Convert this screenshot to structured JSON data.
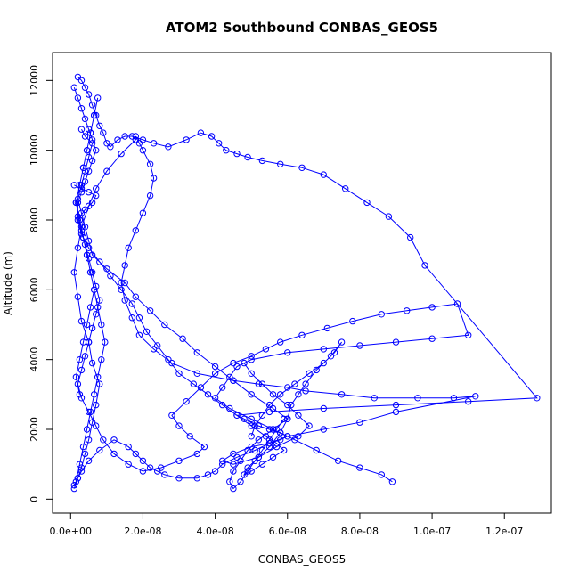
{
  "chart_data": {
    "type": "scatter",
    "title": "ATOM2 Southbound CONBAS_GEOS5",
    "xlabel": "CONBAS_GEOS5",
    "ylabel": "Altitude (m)",
    "xlim": [
      -5e-09,
      1.33e-07
    ],
    "ylim": [
      -400,
      12800
    ],
    "x_ticks": [
      0,
      2e-08,
      4e-08,
      6e-08,
      8e-08,
      1e-07,
      1.2e-07
    ],
    "x_tick_labels": [
      "0.0e+00",
      "2.0e-08",
      "4.0e-08",
      "6.0e-08",
      "8.0e-08",
      "1.0e-07",
      "1.2e-07"
    ],
    "y_ticks": [
      0,
      2000,
      4000,
      6000,
      8000,
      10000,
      12000
    ],
    "y_tick_labels": [
      "0",
      "2000",
      "4000",
      "6000",
      "8000",
      "10000",
      "12000"
    ],
    "grid": false,
    "marker": "open-circle",
    "connected": true,
    "color": "#0000ff",
    "series": [
      {
        "x": [
          1e-09,
          2e-09,
          3e-09,
          4e-09,
          5e-09,
          6e-09,
          7e-09,
          8e-09,
          6e-09,
          5e-09,
          3e-09,
          2e-09,
          1e-09,
          2e-09,
          3e-09,
          5e-09,
          7e-09,
          1e-08,
          1.4e-08,
          1.8e-08,
          1.8e-08,
          1.9e-08,
          2e-08,
          2.2e-08,
          2.3e-08,
          2.2e-08,
          2e-08,
          1.8e-08,
          1.6e-08,
          1.5e-08,
          1.4e-08,
          1.5e-08,
          1.7e-08,
          1.9e-08,
          2.3e-08,
          2.8e-08,
          3.5e-08,
          4.5e-08,
          5.2e-08,
          6e-08,
          6.5e-08,
          7.5e-08,
          8.4e-08,
          9.6e-08,
          1.06e-07,
          1.12e-07,
          9e-08,
          8e-08,
          7e-08,
          6e-08,
          5.5e-08,
          5.1e-08,
          4.6e-08,
          4.2e-08,
          4e-08,
          3.8e-08,
          3.5e-08,
          3e-08,
          2.6e-08,
          2.4e-08,
          2.2e-08,
          2e-08,
          1.8e-08,
          1.6e-08,
          1.2e-08,
          8e-09,
          5e-09,
          3e-09,
          2e-09,
          1e-09
        ],
        "y": [
          300,
          600,
          900,
          1300,
          1700,
          2200,
          2700,
          3300,
          3900,
          4500,
          5100,
          5800,
          6500,
          7200,
          7800,
          8400,
          8900,
          9400,
          9900,
          10300,
          10400,
          10200,
          10000,
          9600,
          9200,
          8700,
          8200,
          7700,
          7200,
          6700,
          6200,
          5700,
          5200,
          4700,
          4300,
          3900,
          3600,
          3400,
          3300,
          3200,
          3100,
          3000,
          2900,
          2900,
          2900,
          2950,
          2500,
          2200,
          2000,
          1800,
          1600,
          1400,
          1200,
          1000,
          800,
          700,
          600,
          600,
          700,
          800,
          900,
          1100,
          1300,
          1500,
          1700,
          1400,
          1100,
          800,
          600,
          400
        ]
      },
      {
        "x": [
          1e-09,
          2e-09,
          3e-09,
          4e-09,
          5e-09,
          6e-09,
          7e-09,
          6e-09,
          5e-09,
          4e-09,
          3e-09,
          2e-09,
          2e-09,
          3e-09,
          4e-09,
          5e-09,
          6e-09,
          7e-09,
          8e-09,
          7e-09,
          6e-09,
          5e-09,
          4e-09,
          3e-09,
          2e-09,
          3e-09,
          5e-09,
          7e-09,
          9e-09,
          1.2e-08,
          1.6e-08,
          2e-08,
          2.5e-08,
          3e-08,
          3.5e-08,
          3.7e-08,
          3.3e-08,
          3e-08,
          2.8e-08,
          3.2e-08,
          3.6e-08,
          4e-08,
          4.5e-08,
          5e-08,
          5.4e-08,
          5.8e-08,
          6.4e-08,
          7.1e-08,
          7.8e-08,
          8.6e-08,
          9.3e-08,
          1e-07,
          1.07e-07,
          1.1e-07,
          1e-07,
          9e-08,
          8e-08,
          7e-08,
          6e-08,
          5e-08,
          4.6e-08,
          4.4e-08,
          4.2e-08,
          4e-08,
          4.4e-08,
          5e-08,
          5.6e-08,
          6.2e-08,
          6.8e-08,
          7.4e-08,
          8e-08,
          8.6e-08,
          8.9e-08
        ],
        "y": [
          11800,
          11500,
          11200,
          10900,
          10600,
          10300,
          10000,
          9700,
          9400,
          9100,
          8800,
          8500,
          8100,
          7700,
          7300,
          6900,
          6500,
          6100,
          5700,
          5300,
          4900,
          4500,
          4100,
          3700,
          3300,
          2900,
          2500,
          2100,
          1700,
          1300,
          1000,
          800,
          900,
          1100,
          1300,
          1500,
          1800,
          2100,
          2400,
          2800,
          3200,
          3600,
          3900,
          4100,
          4300,
          4500,
          4700,
          4900,
          5100,
          5300,
          5400,
          5500,
          5600,
          4700,
          4600,
          4500,
          4400,
          4300,
          4200,
          4000,
          3800,
          3500,
          3200,
          2900,
          2600,
          2300,
          2000,
          1700,
          1400,
          1100,
          900,
          700,
          500
        ]
      },
      {
        "x": [
          2e-09,
          3e-09,
          4e-09,
          5e-09,
          6e-09,
          7e-09,
          8e-09,
          9e-09,
          1e-08,
          1.1e-08,
          1.3e-08,
          1.5e-08,
          1.7e-08,
          2e-08,
          2.3e-08,
          2.7e-08,
          3.2e-08,
          3.6e-08,
          3.9e-08,
          4.1e-08,
          4.3e-08,
          4.6e-08,
          4.9e-08,
          5.3e-08,
          5.8e-08,
          6.4e-08,
          7e-08,
          7.6e-08,
          8.2e-08,
          8.8e-08,
          9.4e-08,
          9.8e-08,
          1.29e-07,
          1.1e-07,
          9e-08,
          7e-08,
          5.5e-08,
          4.6e-08,
          4.8e-08,
          5e-08,
          5.2e-08,
          5.5e-08,
          5.8e-08,
          6e-08,
          5.8e-08,
          5.5e-08,
          5e-08,
          4.5e-08,
          4.2e-08,
          4.5e-08,
          5.2e-08,
          5.7e-08,
          6.3e-08,
          6.6e-08,
          6.3e-08,
          6e-08,
          5.6e-08,
          5.3e-08,
          5e-08,
          4.8e-08
        ],
        "y": [
          12100,
          12000,
          11800,
          11600,
          11300,
          11000,
          10700,
          10500,
          10200,
          10100,
          10300,
          10400,
          10400,
          10300,
          10200,
          10100,
          10300,
          10500,
          10400,
          10200,
          10000,
          9900,
          9800,
          9700,
          9600,
          9500,
          9300,
          8900,
          8500,
          8100,
          7500,
          6700,
          2900,
          2800,
          2700,
          2600,
          2500,
          2400,
          2300,
          2200,
          2100,
          2000,
          1900,
          1800,
          1700,
          1600,
          1500,
          1300,
          1100,
          1000,
          1200,
          1500,
          1800,
          2100,
          2400,
          2700,
          3000,
          3300,
          3600,
          3900
        ]
      },
      {
        "x": [
          1e-09,
          3e-09,
          5e-09,
          7e-09,
          6e-09,
          4e-09,
          2e-09,
          3e-09,
          5e-09,
          8e-09,
          1.1e-08,
          1.4e-08,
          1.7e-08,
          1.9e-08,
          2.1e-08,
          2.4e-08,
          2.7e-08,
          3e-08,
          3.4e-08,
          3.8e-08,
          4.2e-08,
          4.6e-08,
          5e-08,
          5.4e-08,
          5.7e-08,
          5.9e-08,
          5.6e-08,
          5.3e-08,
          5e-08,
          4.8e-08,
          4.9e-08,
          5.2e-08,
          5.5e-08,
          5.8e-08,
          6e-08,
          6.1e-08,
          6.3e-08,
          6.5e-08,
          6.8e-08,
          7.2e-08,
          7.5e-08,
          7.3e-08,
          7e-08,
          6.6e-08,
          6.2e-08,
          5.8e-08,
          5.5e-08,
          5.3e-08,
          5.1e-08,
          5e-08
        ],
        "y": [
          9000,
          8900,
          8800,
          8700,
          8500,
          8300,
          8000,
          7600,
          7200,
          6800,
          6400,
          6000,
          5600,
          5200,
          4800,
          4400,
          4000,
          3600,
          3300,
          3000,
          2700,
          2400,
          2100,
          1800,
          1600,
          1400,
          1200,
          1000,
          800,
          700,
          900,
          1200,
          1500,
          1900,
          2300,
          2700,
          3000,
          3300,
          3700,
          4100,
          4500,
          4200,
          3900,
          3600,
          3300,
          3000,
          2700,
          2400,
          2100,
          1800
        ]
      },
      {
        "x": [
          3e-09,
          4e-09,
          6e-09,
          5e-09,
          4e-09,
          3e-09,
          2e-09,
          3e-09,
          4e-09,
          5e-09,
          6e-09,
          1e-08,
          1.5e-08,
          1.8e-08,
          2.2e-08,
          2.6e-08,
          3.1e-08,
          3.5e-08,
          4e-08,
          4.5e-08,
          5e-08,
          5.6e-08,
          6e-08,
          5.6e-08,
          5.2e-08,
          4.9e-08,
          4.7e-08,
          4.5e-08,
          4.4e-08,
          4.5e-08,
          4.7e-08,
          4.9e-08,
          5.1e-08,
          5.3e-08,
          5.5e-08,
          5.7e-08,
          5.9e-08
        ],
        "y": [
          10600,
          10400,
          10200,
          9800,
          9400,
          9000,
          8600,
          8200,
          7800,
          7400,
          7000,
          6600,
          6200,
          5800,
          5400,
          5000,
          4600,
          4200,
          3800,
          3400,
          3000,
          2600,
          2300,
          2000,
          1700,
          1400,
          1100,
          800,
          500,
          300,
          500,
          800,
          1100,
          1400,
          1700,
          2000,
          2300
        ]
      },
      {
        "x": [
          1.5e-09,
          2.5e-09,
          3.5e-09,
          4.5e-09,
          5.5e-09,
          6.5e-09,
          7.5e-09,
          8.5e-09,
          9.5e-09,
          8.5e-09,
          7.5e-09,
          6.5e-09,
          5.5e-09,
          4.5e-09,
          3.5e-09,
          2.5e-09,
          1.5e-09,
          2.5e-09,
          3.5e-09,
          4.5e-09,
          5.5e-09,
          6.5e-09,
          7.5e-09,
          6.5e-09,
          5.5e-09,
          4.5e-09,
          3.5e-09,
          2.5e-09,
          1.5e-09,
          2.5e-09,
          3.5e-09,
          4.5e-09,
          5.5e-09,
          6.5e-09,
          5.5e-09,
          4.5e-09,
          3.5e-09,
          2.5e-09,
          1.5e-09,
          2.5e-09
        ],
        "y": [
          500,
          1000,
          1500,
          2000,
          2500,
          3000,
          3500,
          4000,
          4500,
          5000,
          5500,
          6000,
          6500,
          7000,
          7500,
          8000,
          8500,
          9000,
          9500,
          10000,
          10500,
          11000,
          11500,
          11000,
          10500,
          10000,
          9500,
          9000,
          8500,
          8000,
          7500,
          7000,
          6500,
          6000,
          5500,
          5000,
          4500,
          4000,
          3500,
          3000
        ]
      }
    ]
  }
}
